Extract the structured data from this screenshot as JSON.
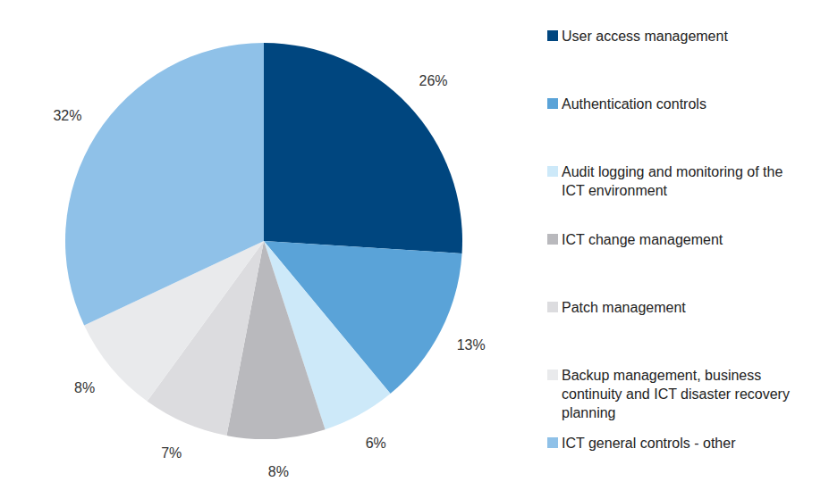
{
  "chart_data": {
    "type": "pie",
    "categories": [
      "User access management",
      "Authentication controls",
      "Audit logging and monitoring of the ICT environment",
      "ICT change management",
      "Patch management",
      "Backup management, business continuity and ICT disaster recovery planning",
      "ICT general controls  - other"
    ],
    "values": [
      26,
      13,
      6,
      8,
      7,
      8,
      32
    ],
    "value_labels": [
      "26%",
      "13%",
      "6%",
      "8%",
      "7%",
      "8%",
      "32%"
    ],
    "colors": [
      "#00467f",
      "#5aa3d8",
      "#cde9f9",
      "#b9b9bd",
      "#dcdcdf",
      "#e9eaec",
      "#8fc1e8"
    ],
    "data_labels": true,
    "legend": "right"
  }
}
